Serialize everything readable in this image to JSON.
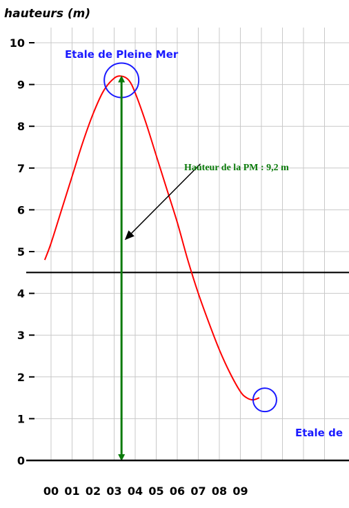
{
  "chart_data": {
    "type": "line",
    "ylabel": "hauteurs (m)",
    "xlabel": "",
    "x_ticks": [
      "00",
      "01",
      "02",
      "03",
      "04",
      "05",
      "06",
      "07",
      "08",
      "09"
    ],
    "y_ticks": [
      "0",
      "1",
      "2",
      "3",
      "4",
      "5",
      "6",
      "7",
      "8",
      "9",
      "10"
    ],
    "xlim": [
      -0.4,
      10.2
    ],
    "ylim": [
      0,
      10.2
    ],
    "grid": true,
    "series": [
      {
        "color": "#ff0000",
        "x": [
          -0.3,
          0.0,
          0.5,
          1.0,
          1.5,
          2.0,
          2.5,
          3.0,
          3.35,
          3.7,
          4.0,
          4.5,
          5.0,
          5.5,
          6.0,
          6.5,
          7.0,
          7.5,
          8.0,
          8.5,
          9.0,
          9.3,
          9.6,
          9.9
        ],
        "y": [
          4.8,
          5.2,
          6.0,
          6.8,
          7.6,
          8.3,
          8.85,
          9.15,
          9.2,
          9.1,
          8.8,
          8.1,
          7.3,
          6.5,
          5.7,
          4.8,
          4.0,
          3.3,
          2.65,
          2.1,
          1.65,
          1.5,
          1.45,
          1.5
        ]
      }
    ],
    "reference_line": {
      "y": 4.5,
      "color": "#000000"
    },
    "annotations": {
      "high_water_label": "Etale de Pleine Mer",
      "low_water_label": "Etale de",
      "high_water_point": {
        "x": 3.35,
        "y": 9.2
      },
      "low_water_point": {
        "x": 9.9,
        "y": 1.45
      },
      "height_label": "Hauteur de la PM : 9,2 m",
      "height_arrow": {
        "x": 3.35,
        "from_y": 0,
        "to_y": 9.2
      },
      "pointer_arrow": {
        "from": {
          "x": 7.1,
          "y": 7.1
        },
        "to": {
          "x": 3.55,
          "y": 5.3
        }
      }
    },
    "colors": {
      "curve": "#ff0000",
      "blue": "#1a1aff",
      "green": "#0a7a0a",
      "axis": "#000000",
      "grid": "#c8c8c8"
    }
  }
}
